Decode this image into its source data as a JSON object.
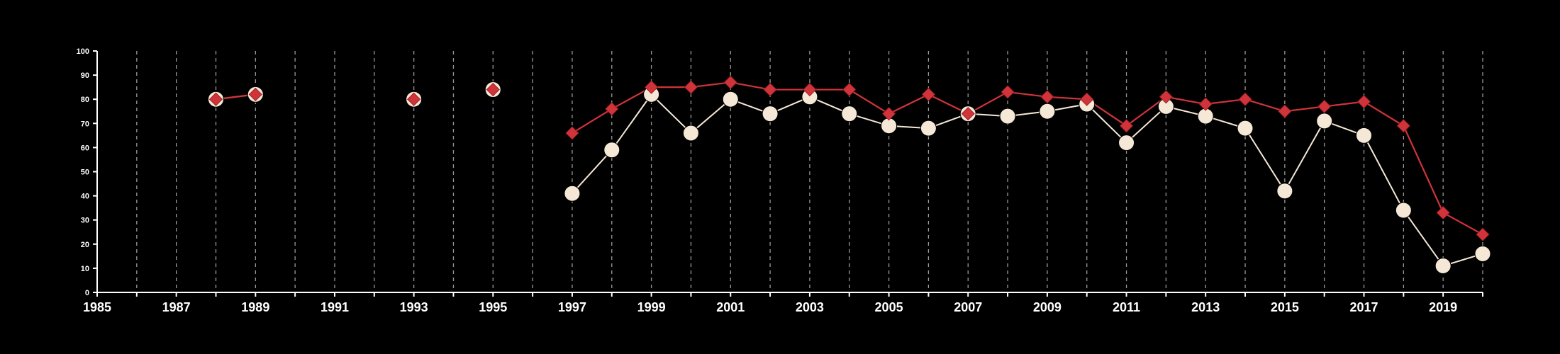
{
  "chart_data": {
    "type": "line",
    "title": "",
    "xlabel": "",
    "ylabel": "",
    "xlim": [
      1985,
      2020
    ],
    "ylim": [
      0,
      100
    ],
    "x_ticks": [
      1985,
      1987,
      1989,
      1991,
      1993,
      1995,
      1997,
      1999,
      2001,
      2003,
      2005,
      2007,
      2009,
      2011,
      2013,
      2015,
      2017,
      2019
    ],
    "y_ticks": [
      0,
      10,
      20,
      30,
      40,
      50,
      60,
      70,
      80,
      90,
      100
    ],
    "grid": "vertical dashed lines at every year",
    "legend": "none",
    "series": [
      {
        "marker": "diamond",
        "color": "#d0343a",
        "points": [
          [
            1988,
            80
          ],
          [
            1989,
            82
          ],
          [
            1993,
            80
          ],
          [
            1995,
            84
          ],
          [
            1997,
            66
          ],
          [
            1998,
            76
          ],
          [
            1999,
            85
          ],
          [
            2000,
            85
          ],
          [
            2001,
            87
          ],
          [
            2002,
            84
          ],
          [
            2003,
            84
          ],
          [
            2004,
            84
          ],
          [
            2005,
            74
          ],
          [
            2006,
            82
          ],
          [
            2007,
            74
          ],
          [
            2008,
            83
          ],
          [
            2009,
            81
          ],
          [
            2010,
            80
          ],
          [
            2011,
            69
          ],
          [
            2012,
            81
          ],
          [
            2013,
            78
          ],
          [
            2014,
            80
          ],
          [
            2015,
            75
          ],
          [
            2016,
            77
          ],
          [
            2017,
            79
          ],
          [
            2018,
            69
          ],
          [
            2019,
            33
          ],
          [
            2020,
            24
          ]
        ]
      },
      {
        "marker": "circle",
        "color": "#f5e8d6",
        "points": [
          [
            1988,
            80
          ],
          [
            1989,
            82
          ],
          [
            1993,
            80
          ],
          [
            1995,
            84
          ],
          [
            1997,
            41
          ],
          [
            1998,
            59
          ],
          [
            1999,
            82
          ],
          [
            2000,
            66
          ],
          [
            2001,
            80
          ],
          [
            2002,
            74
          ],
          [
            2003,
            81
          ],
          [
            2004,
            74
          ],
          [
            2005,
            69
          ],
          [
            2006,
            68
          ],
          [
            2007,
            74
          ],
          [
            2008,
            73
          ],
          [
            2009,
            75
          ],
          [
            2010,
            78
          ],
          [
            2011,
            62
          ],
          [
            2012,
            77
          ],
          [
            2013,
            73
          ],
          [
            2014,
            68
          ],
          [
            2015,
            42
          ],
          [
            2016,
            71
          ],
          [
            2017,
            65
          ],
          [
            2018,
            34
          ],
          [
            2019,
            11
          ],
          [
            2020,
            16
          ]
        ]
      }
    ]
  }
}
